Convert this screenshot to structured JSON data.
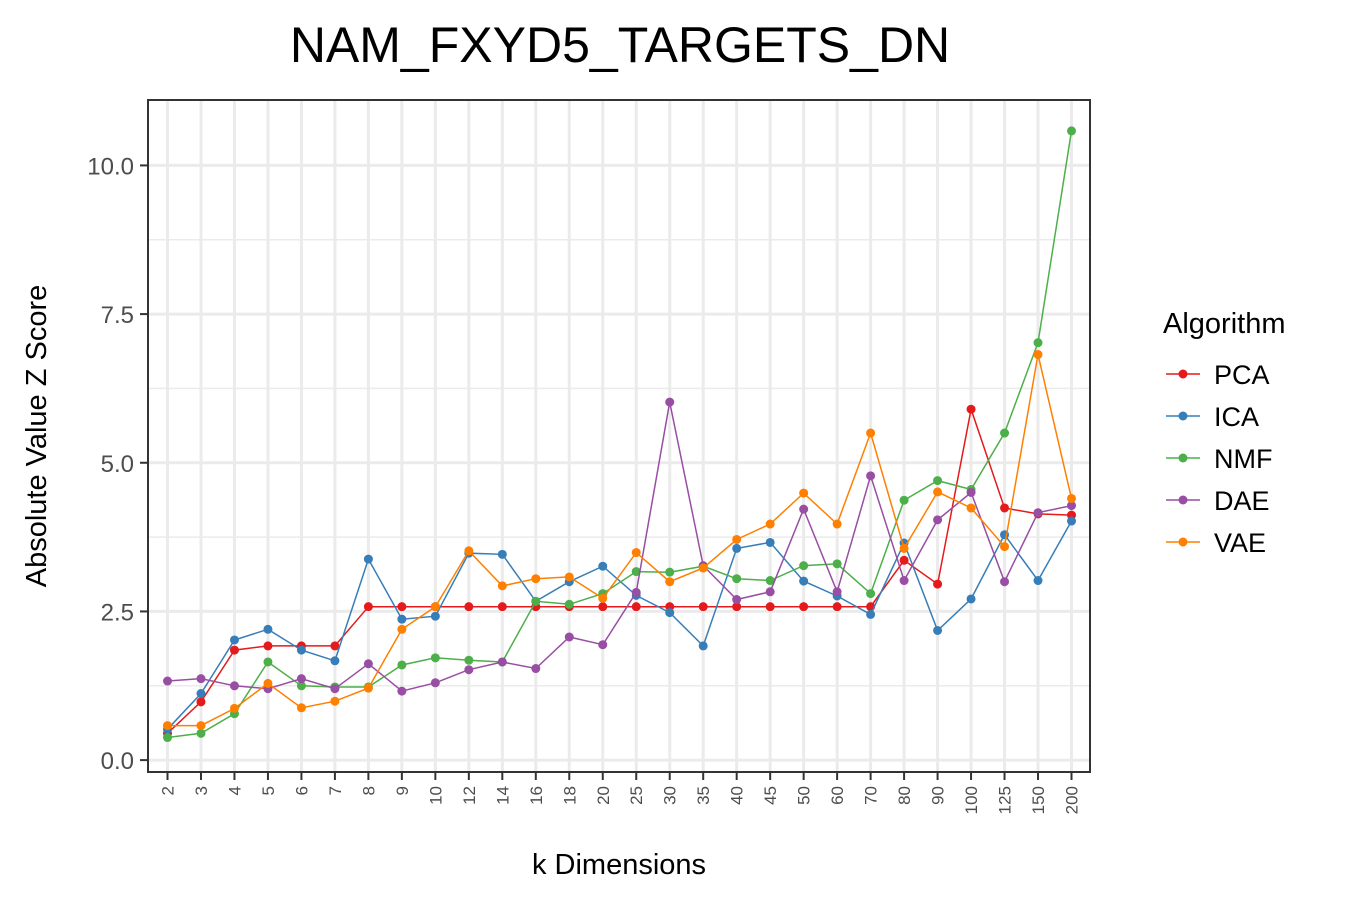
{
  "chart_data": {
    "type": "line",
    "title": "NAM_FXYD5_TARGETS_DN",
    "xlabel": "k Dimensions",
    "ylabel": "Absolute Value Z Score",
    "categories": [
      "2",
      "3",
      "4",
      "5",
      "6",
      "7",
      "8",
      "9",
      "10",
      "12",
      "14",
      "16",
      "18",
      "20",
      "25",
      "30",
      "35",
      "40",
      "45",
      "50",
      "60",
      "70",
      "80",
      "90",
      "100",
      "125",
      "150",
      "200"
    ],
    "ylim": [
      -0.2,
      11.1
    ],
    "yticks": [
      "0.0",
      "2.5",
      "5.0",
      "7.5",
      "10.0"
    ],
    "ytick_values": [
      0,
      2.5,
      5,
      7.5,
      10
    ],
    "grid": true,
    "legend_title": "Algorithm",
    "legend_position": "right",
    "series": [
      {
        "name": "PCA",
        "color": "#e41a1c",
        "values": [
          0.45,
          0.98,
          1.85,
          1.92,
          1.92,
          1.92,
          2.58,
          2.58,
          2.58,
          2.58,
          2.58,
          2.58,
          2.58,
          2.58,
          2.58,
          2.58,
          2.58,
          2.58,
          2.58,
          2.58,
          2.58,
          2.58,
          3.36,
          2.96,
          5.9,
          4.24,
          4.14,
          4.12
        ]
      },
      {
        "name": "ICA",
        "color": "#377eb8",
        "values": [
          0.52,
          1.12,
          2.02,
          2.2,
          1.85,
          1.67,
          3.38,
          2.37,
          2.42,
          3.48,
          3.46,
          2.67,
          3.0,
          3.26,
          2.77,
          2.48,
          1.92,
          3.56,
          3.66,
          3.01,
          2.76,
          2.45,
          3.65,
          2.18,
          2.71,
          3.79,
          3.02,
          4.02
        ]
      },
      {
        "name": "NMF",
        "color": "#4daf4a",
        "values": [
          0.38,
          0.45,
          0.78,
          1.65,
          1.25,
          1.23,
          1.23,
          1.6,
          1.72,
          1.68,
          1.65,
          2.67,
          2.62,
          2.8,
          3.17,
          3.16,
          3.26,
          3.05,
          3.02,
          3.27,
          3.3,
          2.8,
          4.37,
          4.7,
          4.55,
          5.5,
          7.02,
          10.58
        ]
      },
      {
        "name": "DAE",
        "color": "#984ea3",
        "values": [
          1.33,
          1.37,
          1.25,
          1.2,
          1.37,
          1.2,
          1.62,
          1.16,
          1.3,
          1.52,
          1.65,
          1.54,
          2.07,
          1.94,
          2.82,
          6.02,
          3.27,
          2.7,
          2.83,
          4.22,
          2.83,
          4.78,
          3.02,
          4.04,
          4.5,
          3.0,
          4.16,
          4.28
        ]
      },
      {
        "name": "VAE",
        "color": "#ff7f00",
        "values": [
          0.58,
          0.58,
          0.87,
          1.29,
          0.88,
          0.99,
          1.21,
          2.2,
          2.58,
          3.52,
          2.93,
          3.05,
          3.08,
          2.72,
          3.49,
          3.0,
          3.23,
          3.71,
          3.97,
          4.49,
          3.97,
          5.5,
          3.56,
          4.51,
          4.24,
          3.59,
          6.82,
          4.4
        ]
      }
    ]
  }
}
